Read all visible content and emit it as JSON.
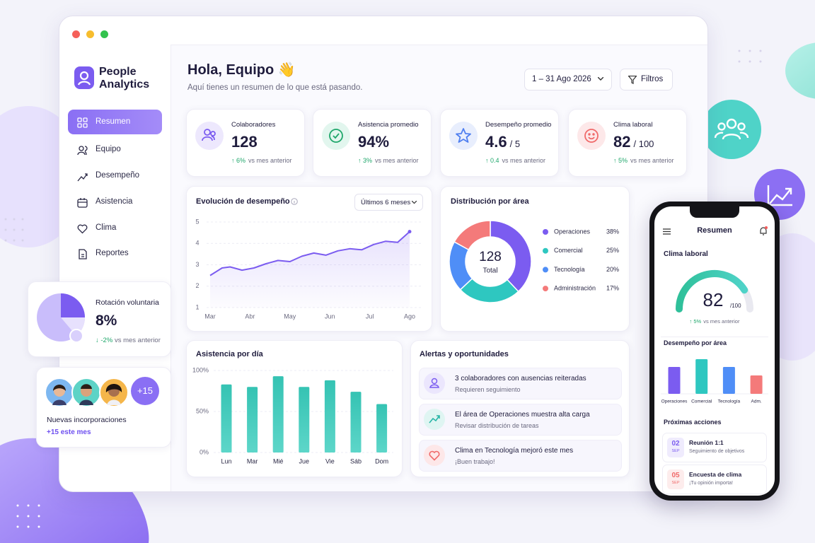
{
  "sidebar": {
    "brand": "People Analytics",
    "nav": [
      "Resumen",
      "Equipo",
      "Desempeño",
      "Asistencia",
      "Clima",
      "Reportes"
    ]
  },
  "header": {
    "title": "Hola, Equipo 👋",
    "subtitle": "Aquí tienes un resumen de lo que está pasando.",
    "date_range": "1 – 31 Ago 2026",
    "filters": "Filtros"
  },
  "kpis": [
    {
      "label": "Colaboradores",
      "value": "128",
      "change": "↑ 6%",
      "note": "vs mes anterior"
    },
    {
      "label": "Asistencia promedio",
      "value": "94%",
      "change": "↑ 3%",
      "note": "vs mes anterior"
    },
    {
      "label": "Desempeño promedio",
      "value": "4.6",
      "suffix": "/ 5",
      "change": "↑ 0.4",
      "note": "vs mes anterior"
    },
    {
      "label": "Clima laboral",
      "value": "82",
      "suffix": "/ 100",
      "change": "↑ 5%",
      "note": "vs mes anterior"
    }
  ],
  "performance_chart": {
    "type": "line",
    "title": "Evolución de desempeño",
    "period": "Últimos 6 meses",
    "x": [
      0,
      0.3,
      0.5,
      0.8,
      1.1,
      1.4,
      1.7,
      2.0,
      2.3,
      2.6,
      2.9,
      3.2,
      3.5,
      3.8,
      4.1,
      4.4,
      4.7,
      5.0
    ],
    "values": [
      2.5,
      2.85,
      2.9,
      2.75,
      2.85,
      3.05,
      3.2,
      3.15,
      3.4,
      3.55,
      3.45,
      3.65,
      3.75,
      3.7,
      3.95,
      4.1,
      4.05,
      4.55
    ],
    "xlim": [
      0,
      5
    ],
    "xticks": [
      {
        "value": 0,
        "label": "Mar"
      },
      {
        "value": 1,
        "label": "Abr"
      },
      {
        "value": 2,
        "label": "May"
      },
      {
        "value": 3,
        "label": "Jun"
      },
      {
        "value": 4,
        "label": "Jul"
      },
      {
        "value": 5,
        "label": "Ago"
      }
    ],
    "ylim": [
      1,
      5
    ],
    "yticks": [
      1,
      2,
      3,
      4,
      5
    ],
    "color": "#7b5cf0"
  },
  "distribution_chart": {
    "type": "donut",
    "title": "Distribución por área",
    "center_value": "128",
    "center_label": "Total",
    "categories": [
      "Operaciones",
      "Comercial",
      "Tecnología",
      "Administración"
    ],
    "values": [
      38,
      25,
      20,
      17
    ],
    "value_labels": [
      "38%",
      "25%",
      "20%",
      "17%"
    ],
    "colors": [
      "#7b5cf0",
      "#2ec7c0",
      "#4f8ef7",
      "#f47a7a"
    ]
  },
  "attendance_chart": {
    "type": "bar",
    "title": "Asistencia por día",
    "categories": [
      "Lun",
      "Mar",
      "Mié",
      "Jue",
      "Vie",
      "Sáb",
      "Dom"
    ],
    "values": [
      83,
      80,
      93,
      80,
      88,
      74,
      59
    ],
    "ylim": [
      0,
      100
    ],
    "yticks": [
      {
        "value": 0,
        "label": "0%"
      },
      {
        "value": 50,
        "label": "50%"
      },
      {
        "value": 100,
        "label": "100%"
      }
    ],
    "color": "#3cc9b8"
  },
  "alerts": {
    "title": "Alertas y oportunidades",
    "items": [
      {
        "title": "3 colaboradores con ausencias reiteradas",
        "subtitle": "Requieren seguimiento"
      },
      {
        "title": "El área de Operaciones muestra alta carga",
        "subtitle": "Revisar distribución de tareas"
      },
      {
        "title": "Clima en Tecnología mejoró este mes",
        "subtitle": "¡Buen trabajo!"
      }
    ]
  },
  "rotation_card": {
    "label": "Rotación voluntaria",
    "value": "8%",
    "change": "↓ -2%",
    "note": "vs mes anterior"
  },
  "new_hires_card": {
    "badge": "+15",
    "label": "Nuevas incorporaciones",
    "note": "+15 este mes"
  },
  "phone": {
    "title": "Resumen",
    "climate": {
      "type": "gauge",
      "title": "Clima laboral",
      "value": 82,
      "max": {
        "value": 100,
        "label": "/100"
      },
      "change": "↑ 5%",
      "note": "vs mes anterior"
    },
    "area_chart": {
      "type": "bar",
      "title": "Desempeño por área",
      "categories": [
        "Operaciones",
        "Comercial",
        "Tecnología",
        "Adm."
      ],
      "values": [
        3.8,
        4.9,
        3.8,
        2.6
      ],
      "ylim": [
        0,
        5
      ],
      "colors": [
        "#7b5cf0",
        "#2ec7c0",
        "#4f8ef7",
        "#f47a7a"
      ]
    },
    "actions": {
      "title": "Próximas acciones",
      "items": [
        {
          "day": "02",
          "month": "SEP",
          "title": "Reunión 1:1",
          "subtitle": "Seguimiento de objetivos"
        },
        {
          "day": "05",
          "month": "SEP",
          "title": "Encuesta de clima",
          "subtitle": "¡Tu opinión importa!"
        }
      ]
    }
  }
}
